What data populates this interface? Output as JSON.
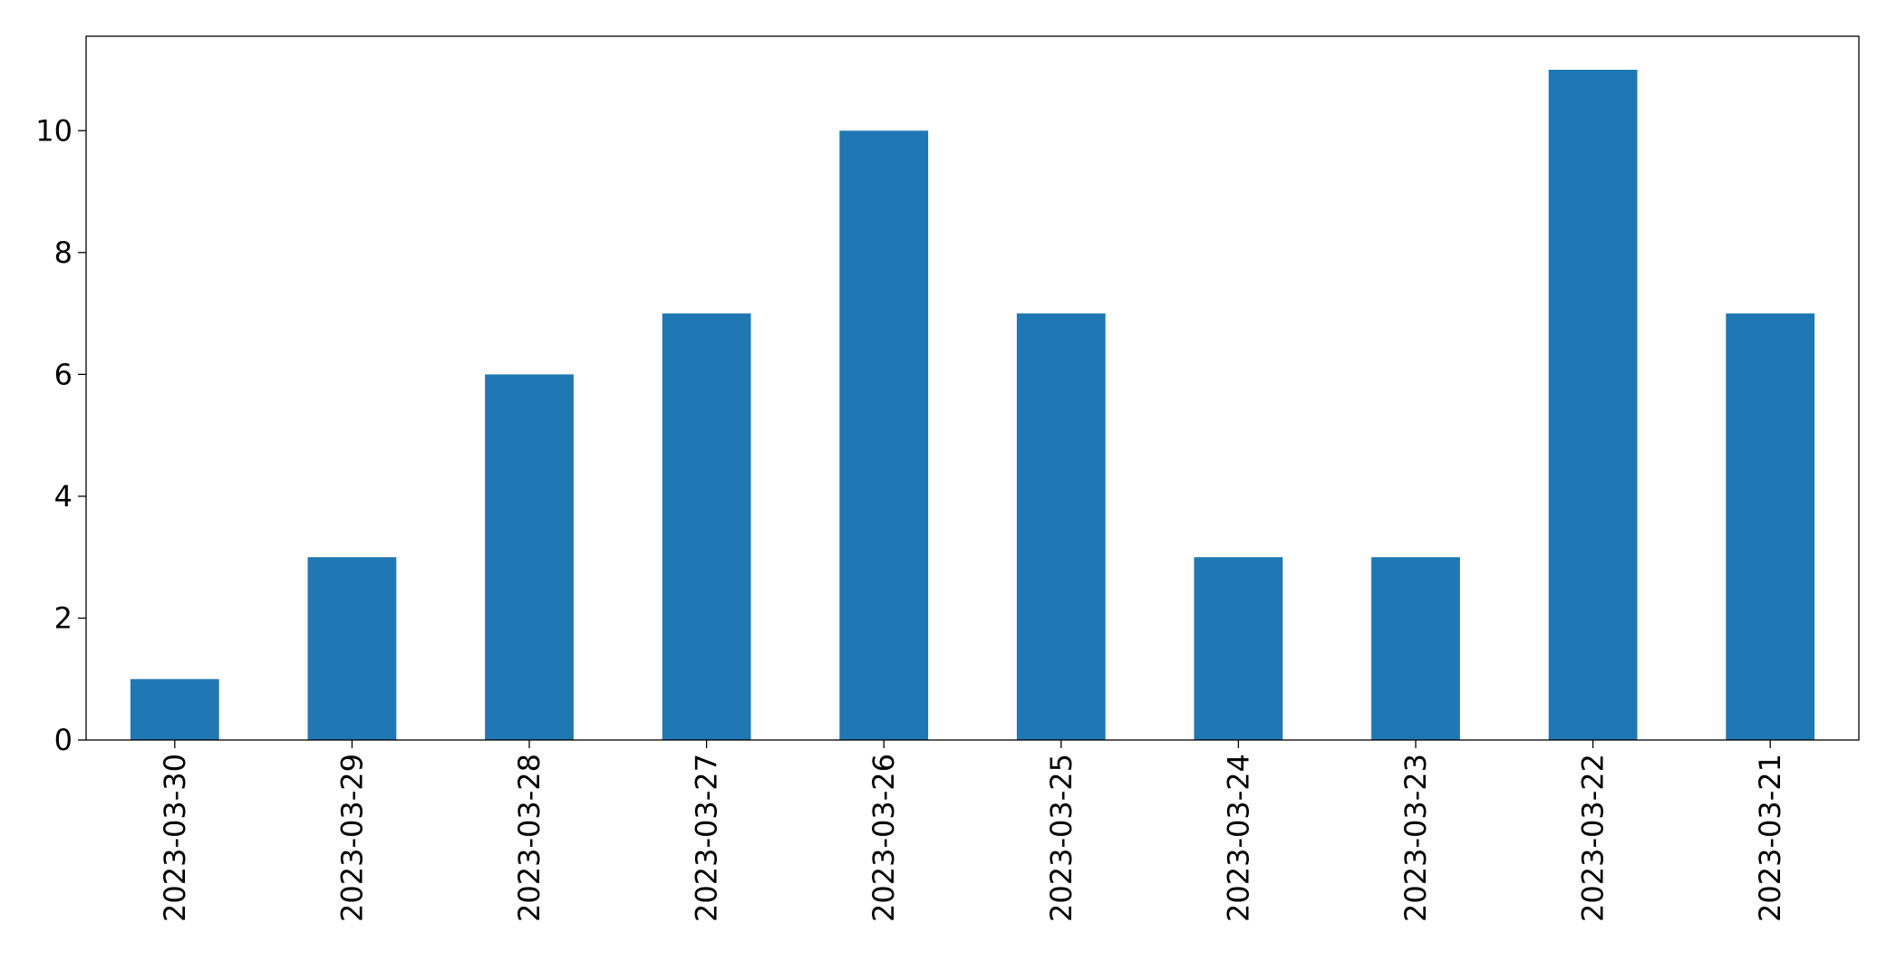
{
  "chart_data": {
    "type": "bar",
    "categories": [
      "2023-03-30",
      "2023-03-29",
      "2023-03-28",
      "2023-03-27",
      "2023-03-26",
      "2023-03-25",
      "2023-03-24",
      "2023-03-23",
      "2023-03-22",
      "2023-03-21"
    ],
    "values": [
      1,
      3,
      6,
      7,
      10,
      7,
      3,
      3,
      11,
      7
    ],
    "color": "#1f77b4",
    "ylim": [
      0,
      11.55
    ],
    "yticks": [
      0,
      2,
      4,
      6,
      8,
      10
    ],
    "grid": false
  }
}
